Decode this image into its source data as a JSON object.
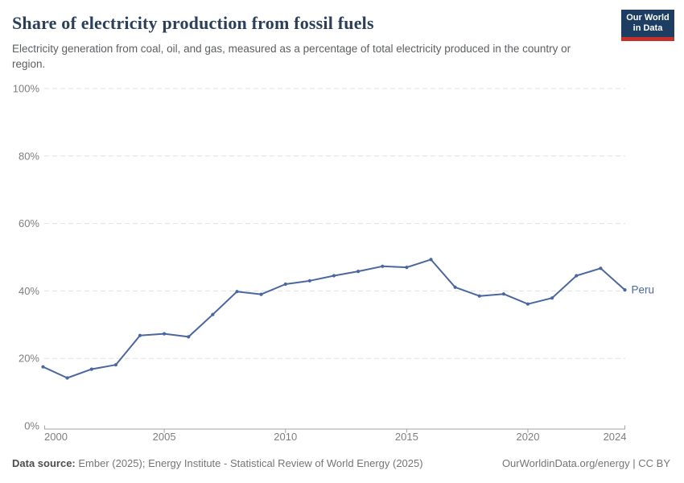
{
  "header": {
    "title": "Share of electricity production from fossil fuels",
    "subtitle": "Electricity generation from coal, oil, and gas, measured as a percentage of total electricity produced in the country or region.",
    "logo_line1": "Our World",
    "logo_line2": "in Data"
  },
  "chart_data": {
    "type": "line",
    "title": "Share of electricity production from fossil fuels",
    "x": [
      2000,
      2001,
      2002,
      2003,
      2004,
      2005,
      2006,
      2007,
      2008,
      2009,
      2010,
      2011,
      2012,
      2013,
      2014,
      2015,
      2016,
      2017,
      2018,
      2019,
      2020,
      2021,
      2022,
      2023,
      2024
    ],
    "series": [
      {
        "name": "Peru",
        "color": "#4b67a0",
        "values": [
          17.5,
          14.2,
          16.8,
          18.1,
          26.8,
          27.3,
          26.4,
          33.0,
          39.8,
          39.0,
          42.0,
          43.0,
          44.5,
          45.8,
          47.3,
          47.0,
          49.3,
          41.1,
          38.5,
          39.1,
          36.1,
          37.9,
          44.5,
          46.7,
          40.3
        ]
      }
    ],
    "xlabel": "",
    "ylabel": "",
    "ylim": [
      0,
      100
    ],
    "yticks": [
      0,
      20,
      40,
      60,
      80,
      100
    ],
    "ytick_suffix": "%",
    "xticks": [
      2000,
      2005,
      2010,
      2015,
      2020,
      2024
    ],
    "grid": "dashed-horizontal",
    "legend_position": "end-of-line-label",
    "end_label": "Peru"
  },
  "colors": {
    "line": "#4b67a0",
    "gridline": "#e0e0e0",
    "axis": "#a3a3a3",
    "tick_text": "#7e7e7e",
    "logo_bg": "#1d3d63",
    "logo_accent": "#c5302b"
  },
  "footer": {
    "source_label": "Data source:",
    "source_text": " Ember (2025); Energy Institute - Statistical Review of World Energy (2025)",
    "credit": "OurWorldinData.org/energy | CC BY"
  }
}
